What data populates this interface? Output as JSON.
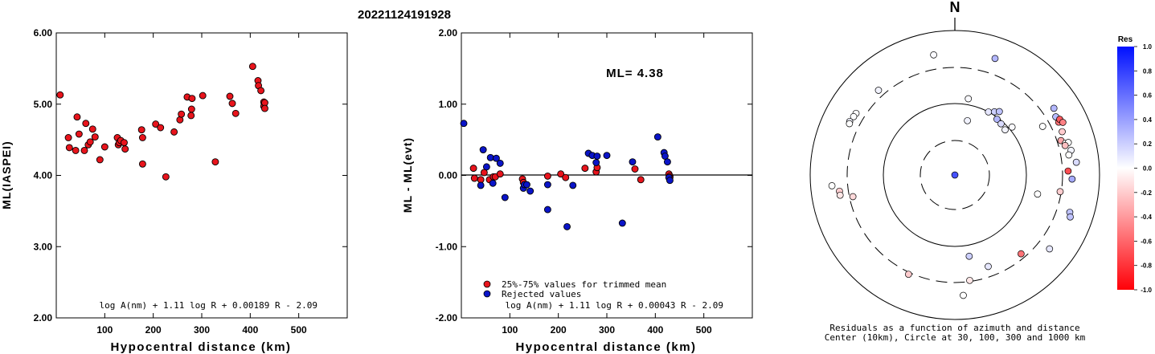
{
  "title": "20221124191928",
  "chart_data": [
    {
      "id": "left",
      "type": "scatter",
      "xlabel": "Hypocentral distance (km)",
      "ylabel": "ML(IASPEI)",
      "xlim": [
        0,
        600
      ],
      "ylim": [
        2.0,
        6.0
      ],
      "xticks": [
        "100",
        "200",
        "300",
        "400",
        "500"
      ],
      "yticks": [
        "2.00",
        "3.00",
        "4.00",
        "5.00",
        "6.00"
      ],
      "formula": "log A(nm) + 1.11 log R + 0.00189 R - 2.09",
      "series": [
        {
          "color": "#e8141c",
          "points": [
            [
              8,
              5.13
            ],
            [
              25,
              4.53
            ],
            [
              27,
              4.39
            ],
            [
              40,
              4.35
            ],
            [
              43,
              4.82
            ],
            [
              47,
              4.58
            ],
            [
              58,
              4.35
            ],
            [
              61,
              4.73
            ],
            [
              66,
              4.43
            ],
            [
              70,
              4.47
            ],
            [
              75,
              4.65
            ],
            [
              80,
              4.54
            ],
            [
              90,
              4.22
            ],
            [
              100,
              4.4
            ],
            [
              126,
              4.53
            ],
            [
              128,
              4.43
            ],
            [
              130,
              4.46
            ],
            [
              133,
              4.49
            ],
            [
              140,
              4.46
            ],
            [
              142,
              4.37
            ],
            [
              176,
              4.64
            ],
            [
              178,
              4.53
            ],
            [
              178,
              4.16
            ],
            [
              205,
              4.72
            ],
            [
              215,
              4.67
            ],
            [
              226,
              3.98
            ],
            [
              243,
              4.61
            ],
            [
              255,
              4.78
            ],
            [
              258,
              4.86
            ],
            [
              270,
              5.1
            ],
            [
              278,
              4.84
            ],
            [
              279,
              4.93
            ],
            [
              280,
              5.08
            ],
            [
              302,
              5.12
            ],
            [
              328,
              4.19
            ],
            [
              358,
              5.11
            ],
            [
              363,
              5.01
            ],
            [
              370,
              4.87
            ],
            [
              405,
              5.53
            ],
            [
              416,
              5.33
            ],
            [
              417,
              5.26
            ],
            [
              422,
              5.19
            ],
            [
              428,
              4.97
            ],
            [
              428,
              5.03
            ],
            [
              430,
              5.02
            ],
            [
              430,
              4.94
            ]
          ]
        }
      ]
    },
    {
      "id": "middle",
      "type": "scatter",
      "xlabel": "Hypocentral distance (km)",
      "ylabel": "ML - ML(evt)",
      "xlim": [
        0,
        600
      ],
      "ylim": [
        -2.0,
        2.0
      ],
      "xticks": [
        "100",
        "200",
        "300",
        "400",
        "500"
      ],
      "yticks": [
        "-2.00",
        "-1.00",
        "0.00",
        "1.00",
        "2.00"
      ],
      "annotation": "ML= 4.38",
      "formula": "log A(nm) + 1.11 log R + 0.00043 R - 2.09",
      "legend": [
        "25%-75% values for trimmed mean",
        "Rejected values"
      ],
      "series": [
        {
          "name": "25%-75% values for trimmed mean",
          "color": "#e8141c",
          "points": [
            [
              25,
              0.1
            ],
            [
              27,
              -0.04
            ],
            [
              40,
              -0.06
            ],
            [
              47,
              0.04
            ],
            [
              58,
              -0.06
            ],
            [
              66,
              -0.02
            ],
            [
              70,
              -0.02
            ],
            [
              80,
              0.02
            ],
            [
              126,
              -0.05
            ],
            [
              128,
              -0.1
            ],
            [
              178,
              -0.01
            ],
            [
              205,
              0.02
            ],
            [
              215,
              -0.03
            ],
            [
              255,
              0.1
            ],
            [
              278,
              0.05
            ],
            [
              280,
              0.11
            ],
            [
              358,
              0.09
            ],
            [
              370,
              -0.06
            ],
            [
              428,
              0.02
            ],
            [
              430,
              -0.01
            ],
            [
              430,
              -0.03
            ]
          ]
        },
        {
          "name": "Rejected values",
          "color": "#0a14c8",
          "points": [
            [
              5,
              0.73
            ],
            [
              40,
              -0.14
            ],
            [
              45,
              0.36
            ],
            [
              52,
              0.12
            ],
            [
              60,
              0.25
            ],
            [
              65,
              -0.11
            ],
            [
              72,
              0.24
            ],
            [
              80,
              0.17
            ],
            [
              90,
              -0.31
            ],
            [
              128,
              -0.18
            ],
            [
              130,
              -0.13
            ],
            [
              135,
              -0.13
            ],
            [
              142,
              -0.22
            ],
            [
              178,
              -0.48
            ],
            [
              178,
              -0.13
            ],
            [
              218,
              -0.72
            ],
            [
              230,
              -0.14
            ],
            [
              262,
              0.31
            ],
            [
              270,
              0.28
            ],
            [
              278,
              0.18
            ],
            [
              280,
              0.27
            ],
            [
              300,
              0.28
            ],
            [
              332,
              -0.67
            ],
            [
              353,
              0.19
            ],
            [
              405,
              0.54
            ],
            [
              418,
              0.32
            ],
            [
              420,
              0.27
            ],
            [
              425,
              0.19
            ],
            [
              428,
              -0.03
            ],
            [
              430,
              -0.07
            ]
          ]
        }
      ]
    },
    {
      "id": "polar",
      "type": "scatter",
      "north_label": "N",
      "caption_line1": "Residuals as a function of azimuth and distance",
      "caption_line2": "Center (10km), Circle at 30, 100, 300 and 1000 km",
      "colorbar_title": "Res",
      "colorbar_ticks": [
        "1.0",
        "0.8",
        "0.6",
        "0.4",
        "0.2",
        "0.0",
        "-0.2",
        "-0.4",
        "-0.6",
        "-0.8",
        "-1.0"
      ],
      "circles_km": [
        30,
        100,
        300,
        1000
      ],
      "points": [
        {
          "az": 0,
          "dist": 10,
          "res": 0.73
        },
        {
          "az": 302,
          "dist": 400,
          "res": 0.0
        },
        {
          "az": 300,
          "dist": 405,
          "res": 0.0
        },
        {
          "az": 297,
          "dist": 420,
          "res": 0.05
        },
        {
          "az": 296,
          "dist": 410,
          "res": 0.0
        },
        {
          "az": 318,
          "dist": 370,
          "res": 0.05
        },
        {
          "az": 350,
          "dist": 480,
          "res": 0.02
        },
        {
          "az": 19,
          "dist": 500,
          "res": 0.3
        },
        {
          "az": 265,
          "dist": 500,
          "res": 0.0
        },
        {
          "az": 258,
          "dist": 270,
          "res": -0.15
        },
        {
          "az": 262,
          "dist": 400,
          "res": -0.2
        },
        {
          "az": 260,
          "dist": 400,
          "res": -0.1
        },
        {
          "az": 10,
          "dist": 120,
          "res": 0.02
        },
        {
          "az": 13,
          "dist": 60,
          "res": 0.05
        },
        {
          "az": 28,
          "dist": 100,
          "res": 0.1
        },
        {
          "az": 32,
          "dist": 110,
          "res": 0.2
        },
        {
          "az": 37,
          "dist": 95,
          "res": 0.3
        },
        {
          "az": 35,
          "dist": 120,
          "res": 0.25
        },
        {
          "az": 42,
          "dist": 92,
          "res": 0.15
        },
        {
          "az": 48,
          "dist": 88,
          "res": 0.05
        },
        {
          "az": 50,
          "dist": 110,
          "res": 0.02
        },
        {
          "az": 61,
          "dist": 240,
          "res": 0.0
        },
        {
          "az": 56,
          "dist": 440,
          "res": 0.3
        },
        {
          "az": 60,
          "dist": 400,
          "res": 0.28
        },
        {
          "az": 63,
          "dist": 400,
          "res": -0.55
        },
        {
          "az": 62,
          "dist": 430,
          "res": -0.65
        },
        {
          "az": 64,
          "dist": 450,
          "res": -0.5
        },
        {
          "az": 68,
          "dist": 390,
          "res": -0.2
        },
        {
          "az": 72,
          "dist": 340,
          "res": -0.35
        },
        {
          "az": 74,
          "dist": 380,
          "res": 0.0
        },
        {
          "az": 74,
          "dist": 420,
          "res": 0.0
        },
        {
          "az": 78,
          "dist": 430,
          "res": 0.05
        },
        {
          "az": 75,
          "dist": 370,
          "res": -0.25
        },
        {
          "az": 80,
          "dist": 390,
          "res": 0.0
        },
        {
          "az": 84,
          "dist": 480,
          "res": 0.15
        },
        {
          "az": 88,
          "dist": 360,
          "res": -0.7
        },
        {
          "az": 92,
          "dist": 410,
          "res": 0.35
        },
        {
          "az": 99,
          "dist": 290,
          "res": -0.2
        },
        {
          "az": 103,
          "dist": 150,
          "res": 0.0
        },
        {
          "az": 108,
          "dist": 460,
          "res": 0.25
        },
        {
          "az": 110,
          "dist": 490,
          "res": 0.25
        },
        {
          "az": 128,
          "dist": 450,
          "res": 0.1
        },
        {
          "az": 140,
          "dist": 260,
          "res": -0.55
        },
        {
          "az": 160,
          "dist": 220,
          "res": 0.1
        },
        {
          "az": 170,
          "dist": 140,
          "res": 0.2
        },
        {
          "az": 172,
          "dist": 290,
          "res": -0.1
        },
        {
          "az": 176,
          "dist": 460,
          "res": 0.0
        },
        {
          "az": 205,
          "dist": 320,
          "res": -0.2
        }
      ]
    }
  ]
}
